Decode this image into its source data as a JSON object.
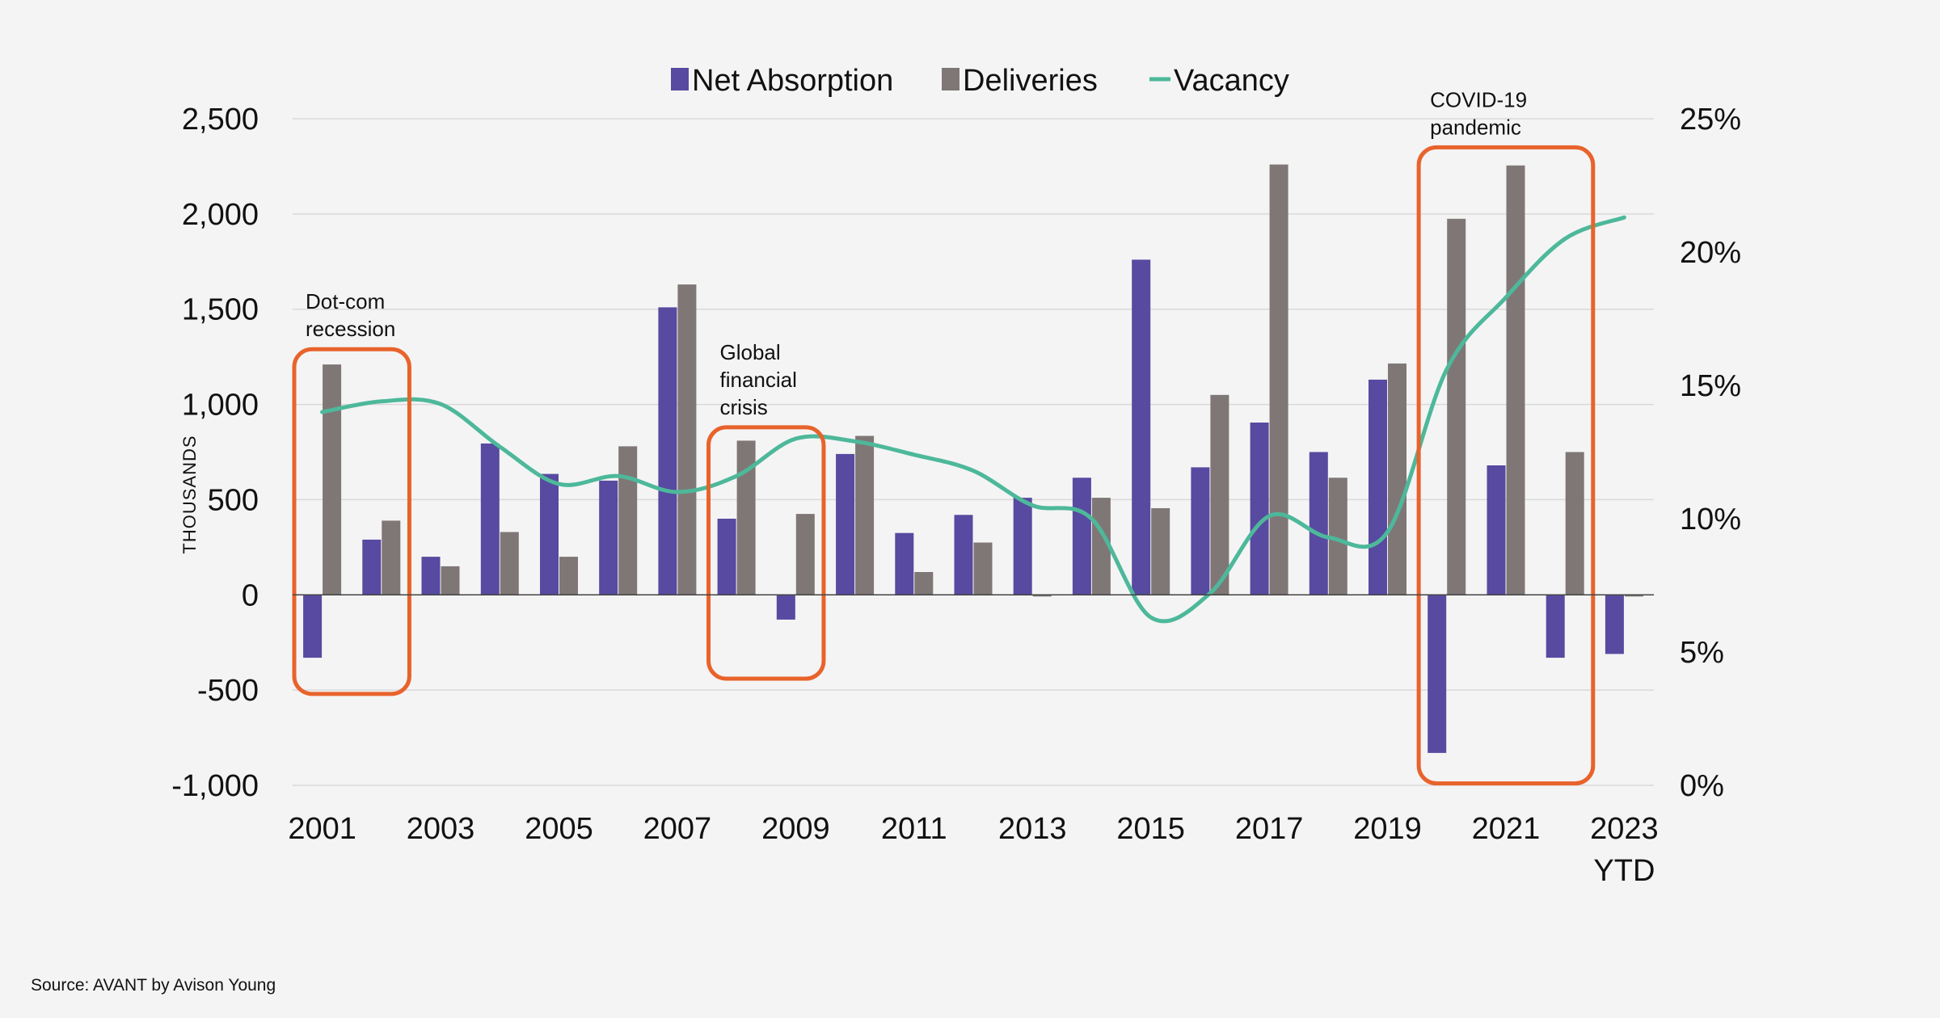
{
  "chart_data": {
    "type": "bar+line",
    "categories": [
      "2001",
      "2002",
      "2003",
      "2004",
      "2005",
      "2006",
      "2007",
      "2008",
      "2009",
      "2010",
      "2011",
      "2012",
      "2013",
      "2014",
      "2015",
      "2016",
      "2017",
      "2018",
      "2019",
      "2020",
      "2021",
      "2022",
      "2023 YTD"
    ],
    "x_tick_labels": [
      "2001",
      "2003",
      "2005",
      "2007",
      "2009",
      "2011",
      "2013",
      "2015",
      "2017",
      "2019",
      "2021",
      "2023"
    ],
    "x_tick_sublabel": "YTD",
    "series": [
      {
        "name": "Net Absorption",
        "type": "bar",
        "axis": "left",
        "color": "#574aa0",
        "values": [
          -330,
          290,
          200,
          795,
          635,
          600,
          1510,
          400,
          -130,
          740,
          325,
          420,
          510,
          615,
          1760,
          670,
          905,
          750,
          1130,
          -830,
          680,
          -330,
          -310
        ]
      },
      {
        "name": "Deliveries",
        "type": "bar",
        "axis": "left",
        "color": "#7f7776",
        "values": [
          1210,
          390,
          150,
          330,
          200,
          780,
          1630,
          810,
          425,
          835,
          120,
          275,
          0,
          510,
          455,
          1050,
          2260,
          615,
          1215,
          1975,
          2255,
          750,
          0
        ]
      },
      {
        "name": "Vacancy",
        "type": "line",
        "axis": "right",
        "color": "#4db89a",
        "smooth": true,
        "values": [
          14.0,
          14.4,
          14.3,
          12.7,
          11.3,
          11.6,
          11.0,
          11.6,
          13.0,
          12.9,
          12.4,
          11.8,
          10.5,
          10.0,
          6.3,
          7.2,
          10.1,
          9.3,
          9.5,
          15.6,
          18.3,
          20.5,
          21.3
        ]
      }
    ],
    "y_left": {
      "label": "THOUSANDS",
      "min": -1000,
      "max": 2500,
      "ticks": [
        2500,
        2000,
        1500,
        1000,
        500,
        0,
        -500,
        -1000
      ],
      "tick_labels": [
        "2,500",
        "2,000",
        "1,500",
        "1,000",
        "500",
        "0",
        "-500",
        "-1,000"
      ]
    },
    "y_right": {
      "min": 0,
      "max": 25,
      "ticks": [
        25,
        20,
        15,
        10,
        5,
        0
      ],
      "tick_labels": [
        "25%",
        "20%",
        "15%",
        "10%",
        "5%",
        "0%"
      ]
    },
    "gridlines": true,
    "legend": {
      "placement": "top-center",
      "items": [
        "Net Absorption",
        "Deliveries",
        "Vacancy"
      ]
    },
    "annotations": [
      {
        "lines": [
          "Dot-com",
          "recession"
        ],
        "from_category": "2001",
        "to_category": "2002",
        "y_top": 1290,
        "y_bottom": -520,
        "label_placement": "above"
      },
      {
        "lines": [
          "Global",
          "financial",
          "crisis"
        ],
        "from_category": "2008",
        "to_category": "2009",
        "y_top": 880,
        "y_bottom": -440,
        "label_placement": "above"
      },
      {
        "lines": [
          "COVID-19",
          "pandemic"
        ],
        "from_category": "2020",
        "to_category": "2022",
        "y_top": 2350,
        "y_bottom": -990,
        "label_placement": "above"
      }
    ],
    "source": "Source: AVANT by Avison Young"
  },
  "colors": {
    "background": "#f4f4f4",
    "annotation_box": "#e8632b",
    "gridline": "#d9d9d9",
    "zero_line": "#444444"
  }
}
